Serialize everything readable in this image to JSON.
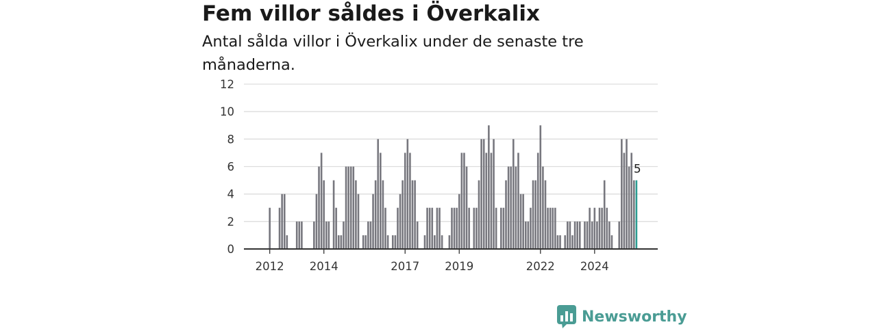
{
  "header": {
    "title": "Fem villor såldes i Överkalix",
    "subtitle": "Antal sålda villor i Överkalix under de senaste tre månaderna."
  },
  "brand": {
    "name": "Newsworthy",
    "icon": "newsworthy-logo-icon",
    "color": "#4a9c94"
  },
  "chart_data": {
    "type": "bar",
    "title": "Fem villor såldes i Överkalix",
    "subtitle": "Antal sålda villor i Överkalix under de senaste tre månaderna.",
    "xlabel": "",
    "ylabel": "",
    "ylim": [
      0,
      12
    ],
    "yticks": [
      0,
      2,
      4,
      6,
      8,
      10,
      12
    ],
    "xticks": [
      {
        "label": "2012",
        "index": 2
      },
      {
        "label": "2014",
        "index": 24
      },
      {
        "label": "2017",
        "index": 57
      },
      {
        "label": "2019",
        "index": 79
      },
      {
        "label": "2022",
        "index": 112
      },
      {
        "label": "2024",
        "index": 134
      }
    ],
    "grid": true,
    "bar_color": "#77777e",
    "highlight_color": "#2b9c91",
    "highlight_last": true,
    "last_label": "5",
    "values": [
      0,
      0,
      3,
      0,
      0,
      0,
      3,
      4,
      4,
      1,
      0,
      0,
      0,
      2,
      2,
      2,
      0,
      0,
      0,
      0,
      2,
      4,
      6,
      7,
      5,
      2,
      2,
      0,
      5,
      3,
      1,
      1,
      2,
      6,
      6,
      6,
      6,
      5,
      4,
      0,
      1,
      1,
      2,
      2,
      4,
      5,
      8,
      7,
      5,
      3,
      1,
      0,
      1,
      1,
      3,
      4,
      5,
      7,
      8,
      7,
      5,
      5,
      2,
      0,
      0,
      1,
      3,
      3,
      3,
      1,
      3,
      3,
      1,
      0,
      0,
      1,
      3,
      3,
      3,
      4,
      7,
      7,
      6,
      3,
      0,
      3,
      3,
      5,
      8,
      8,
      7,
      9,
      7,
      8,
      3,
      0,
      3,
      3,
      5,
      6,
      6,
      8,
      6,
      7,
      4,
      4,
      2,
      2,
      3,
      5,
      5,
      7,
      9,
      6,
      5,
      3,
      3,
      3,
      3,
      1,
      1,
      0,
      1,
      2,
      2,
      1,
      2,
      2,
      2,
      0,
      2,
      2,
      3,
      2,
      3,
      2,
      3,
      3,
      5,
      3,
      2,
      1,
      0,
      0,
      2,
      8,
      7,
      8,
      6,
      7,
      5,
      5
    ]
  }
}
